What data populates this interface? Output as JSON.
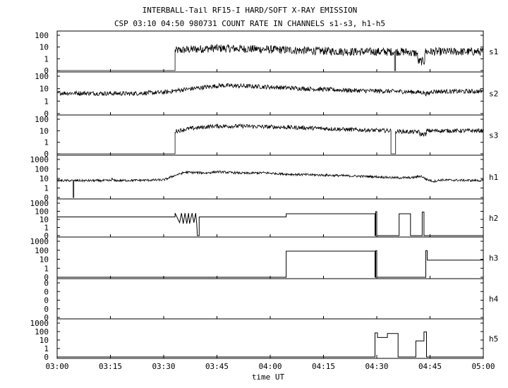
{
  "chart_data": {
    "type": "line",
    "title": "INTERBALL-Tail RF15-I HARD/SOFT X-RAY EMISSION",
    "subtitle": "CSP 03:10 04:50 980731  COUNT RATE IN CHANNELS s1-s3, h1-h5",
    "xlabel": "time UT",
    "x_ticks": [
      "03:00",
      "03:15",
      "03:30",
      "03:45",
      "04:00",
      "04:15",
      "04:30",
      "04:45",
      "05:00"
    ],
    "x_range_minutes": [
      0,
      120
    ],
    "y_scale": "log",
    "panels": [
      {
        "name": "s1",
        "y_ticks": [
          "100",
          "10",
          "1",
          "0"
        ],
        "segments": [
          [
            0,
            0
          ],
          [
            33.2,
            0
          ],
          [
            33.2,
            5
          ],
          [
            37,
            6
          ],
          [
            44,
            8
          ],
          [
            54,
            7
          ],
          [
            70,
            5
          ],
          [
            84,
            4
          ],
          [
            95,
            4
          ],
          [
            95,
            0
          ],
          [
            95.3,
            0
          ],
          [
            95.3,
            4
          ],
          [
            99.5,
            4
          ],
          [
            99.5,
            3
          ],
          [
            101.5,
            3
          ],
          [
            101.5,
            0.6
          ],
          [
            103.5,
            0.6
          ],
          [
            103.5,
            4
          ],
          [
            120,
            4
          ]
        ]
      },
      {
        "name": "s2",
        "y_ticks": [
          "100",
          "10",
          "1",
          "0"
        ],
        "segments": [
          [
            0,
            4.5
          ],
          [
            20,
            4
          ],
          [
            30,
            5
          ],
          [
            35,
            8
          ],
          [
            46,
            18
          ],
          [
            56,
            15
          ],
          [
            70,
            10
          ],
          [
            84,
            7
          ],
          [
            96,
            6
          ],
          [
            103.5,
            5
          ],
          [
            103.5,
            4
          ],
          [
            105,
            4
          ],
          [
            105,
            6
          ],
          [
            120,
            6
          ]
        ]
      },
      {
        "name": "s3",
        "y_ticks": [
          "100",
          "10",
          "1",
          "0"
        ],
        "segments": [
          [
            0,
            0
          ],
          [
            33.2,
            0
          ],
          [
            33.2,
            9
          ],
          [
            37,
            15
          ],
          [
            44,
            25
          ],
          [
            52,
            25
          ],
          [
            70,
            18
          ],
          [
            84,
            12
          ],
          [
            94,
            10
          ],
          [
            94,
            0
          ],
          [
            95.3,
            0
          ],
          [
            95.3,
            9
          ],
          [
            99.5,
            8
          ],
          [
            102,
            8
          ],
          [
            102,
            5
          ],
          [
            104,
            5
          ],
          [
            104,
            10
          ],
          [
            120,
            10
          ]
        ]
      },
      {
        "name": "h1",
        "y_ticks": [
          "1000",
          "100",
          "10",
          "1",
          "0"
        ],
        "segments": [
          [
            0,
            6
          ],
          [
            4.5,
            6
          ],
          [
            4.5,
            0
          ],
          [
            4.7,
            0
          ],
          [
            4.7,
            6
          ],
          [
            15,
            6
          ],
          [
            15.5,
            9
          ],
          [
            16,
            6
          ],
          [
            30,
            7
          ],
          [
            33,
            20
          ],
          [
            36,
            45
          ],
          [
            42,
            38
          ],
          [
            45,
            50
          ],
          [
            53,
            35
          ],
          [
            58,
            40
          ],
          [
            65,
            28
          ],
          [
            80,
            20
          ],
          [
            90,
            15
          ],
          [
            95,
            12
          ],
          [
            100,
            12
          ],
          [
            102.5,
            18
          ],
          [
            104,
            8
          ],
          [
            106,
            5
          ],
          [
            108,
            7
          ],
          [
            120,
            6
          ]
        ]
      },
      {
        "name": "h2",
        "y_ticks": [
          "1000",
          "100",
          "10",
          "1",
          "0"
        ],
        "segments": [
          [
            0,
            20
          ],
          [
            33.2,
            20
          ],
          [
            33.2,
            60
          ],
          [
            34.5,
            4
          ],
          [
            35,
            60
          ],
          [
            35.5,
            3
          ],
          [
            36,
            60
          ],
          [
            36.5,
            3
          ],
          [
            37,
            60
          ],
          [
            37.3,
            3
          ],
          [
            38,
            60
          ],
          [
            38.5,
            4
          ],
          [
            39,
            60
          ],
          [
            39.3,
            3
          ],
          [
            39.5,
            0
          ],
          [
            40,
            0
          ],
          [
            40,
            20
          ],
          [
            64.5,
            20
          ],
          [
            64.5,
            50
          ],
          [
            89.5,
            50
          ],
          [
            89.5,
            0
          ],
          [
            89.7,
            0
          ],
          [
            89.7,
            90
          ],
          [
            90,
            90
          ],
          [
            90,
            0
          ],
          [
            96.3,
            0
          ],
          [
            96.3,
            50
          ],
          [
            99.5,
            50
          ],
          [
            99.5,
            0
          ],
          [
            102.8,
            0
          ],
          [
            102.8,
            80
          ],
          [
            103.3,
            80
          ],
          [
            103.3,
            0
          ],
          [
            120,
            0
          ]
        ]
      },
      {
        "name": "h3",
        "y_ticks": [
          "1000",
          "100",
          "10",
          "1",
          "0"
        ],
        "segments": [
          [
            0,
            0
          ],
          [
            64.5,
            0
          ],
          [
            64.5,
            80
          ],
          [
            89.5,
            80
          ],
          [
            89.5,
            0
          ],
          [
            89.7,
            0
          ],
          [
            89.7,
            90
          ],
          [
            90,
            90
          ],
          [
            90,
            0
          ],
          [
            103.8,
            0
          ],
          [
            103.8,
            90
          ],
          [
            104.2,
            90
          ],
          [
            104.2,
            8
          ],
          [
            120,
            8
          ]
        ]
      },
      {
        "name": "h4",
        "y_ticks": [
          "0",
          "0",
          "0",
          "0",
          "0"
        ],
        "segments": []
      },
      {
        "name": "h5",
        "y_ticks": [
          "1000",
          "100",
          "10",
          "1",
          "0"
        ],
        "segments": [
          [
            0,
            0
          ],
          [
            89.5,
            0
          ],
          [
            89.5,
            70
          ],
          [
            90.2,
            70
          ],
          [
            90.2,
            20
          ],
          [
            93,
            20
          ],
          [
            93,
            60
          ],
          [
            96,
            60
          ],
          [
            96,
            0
          ],
          [
            101,
            0
          ],
          [
            101,
            8
          ],
          [
            103.3,
            8
          ],
          [
            103.3,
            90
          ],
          [
            104,
            90
          ],
          [
            104,
            0
          ],
          [
            120,
            0
          ]
        ]
      }
    ]
  }
}
